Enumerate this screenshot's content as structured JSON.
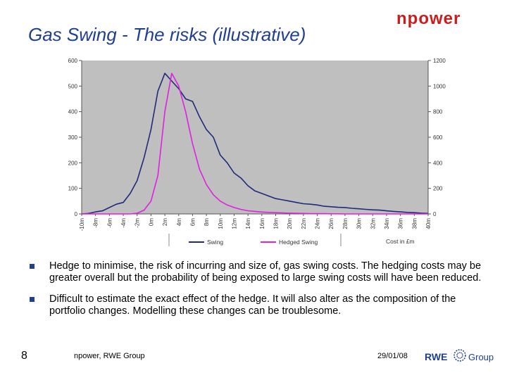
{
  "slide": {
    "title": "Gas Swing - The risks (illustrative)",
    "number": "8",
    "footer_company": "npower, RWE Group",
    "footer_date": "29/01/08",
    "accent_color": "#1f3f8f"
  },
  "logos": {
    "npower": "npower",
    "rwe": "RWE",
    "group": "Group"
  },
  "bullets": [
    "Hedge to minimise, the risk of incurring and size of, gas swing costs.  The hedging costs may be greater overall but the probability of being exposed to large swing costs will have been reduced.",
    "Difficult to estimate the exact effect of the hedge.  It will also alter as the composition of the portfolio changes.  Modelling these changes can be troublesome."
  ],
  "chart_data": {
    "type": "line",
    "xlabel": "Cost in £m",
    "x_tick_labels": [
      "-10m",
      "-8m",
      "-6m",
      "-4m",
      "-2m",
      "0m",
      "2m",
      "4m",
      "6m",
      "8m",
      "10m",
      "12m",
      "14m",
      "16m",
      "18m",
      "20m",
      "22m",
      "24m",
      "26m",
      "28m",
      "30m",
      "32m",
      "34m",
      "36m",
      "38m",
      "40m"
    ],
    "x": [
      -10,
      -9,
      -8,
      -7,
      -6,
      -5,
      -4,
      -3,
      -2,
      -1,
      0,
      1,
      2,
      3,
      4,
      5,
      6,
      7,
      8,
      9,
      10,
      11,
      12,
      13,
      14,
      15,
      16,
      17,
      18,
      19,
      20,
      21,
      22,
      23,
      24,
      25,
      26,
      27,
      28,
      29,
      30,
      31,
      32,
      33,
      34,
      35,
      36,
      37,
      38,
      39,
      40
    ],
    "left_axis": {
      "ylim": [
        0,
        600
      ],
      "tick_labels": [
        "0",
        "100",
        "200",
        "300",
        "400",
        "500",
        "600"
      ],
      "ticks": [
        0,
        100,
        200,
        300,
        400,
        500,
        600
      ]
    },
    "right_axis": {
      "ylim": [
        0,
        1200
      ],
      "tick_labels": [
        "0",
        "200",
        "400",
        "600",
        "800",
        "1000",
        "1200"
      ],
      "ticks": [
        0,
        200,
        400,
        600,
        800,
        1000,
        1200
      ]
    },
    "grid": false,
    "legend_position": "bottom",
    "series": [
      {
        "name": "Swing",
        "axis": "left",
        "color": "#1f2a7a",
        "values": [
          0,
          2,
          8,
          12,
          25,
          38,
          45,
          80,
          130,
          220,
          330,
          480,
          550,
          520,
          490,
          450,
          440,
          380,
          330,
          300,
          230,
          200,
          160,
          140,
          110,
          90,
          80,
          70,
          60,
          55,
          50,
          45,
          40,
          38,
          35,
          30,
          28,
          26,
          25,
          22,
          20,
          18,
          16,
          15,
          12,
          10,
          8,
          6,
          5,
          3,
          2
        ]
      },
      {
        "name": "Hedged Swing",
        "axis": "right",
        "color": "#e020e0",
        "values": [
          0,
          0,
          0,
          0,
          0,
          0,
          0,
          0,
          5,
          30,
          100,
          300,
          800,
          1100,
          1000,
          800,
          550,
          350,
          230,
          150,
          100,
          70,
          50,
          35,
          25,
          20,
          15,
          12,
          10,
          8,
          6,
          5,
          4,
          3,
          2,
          2,
          1,
          1,
          0,
          0,
          0,
          0,
          0,
          0,
          0,
          0,
          0,
          0,
          0,
          0,
          0
        ]
      }
    ]
  }
}
